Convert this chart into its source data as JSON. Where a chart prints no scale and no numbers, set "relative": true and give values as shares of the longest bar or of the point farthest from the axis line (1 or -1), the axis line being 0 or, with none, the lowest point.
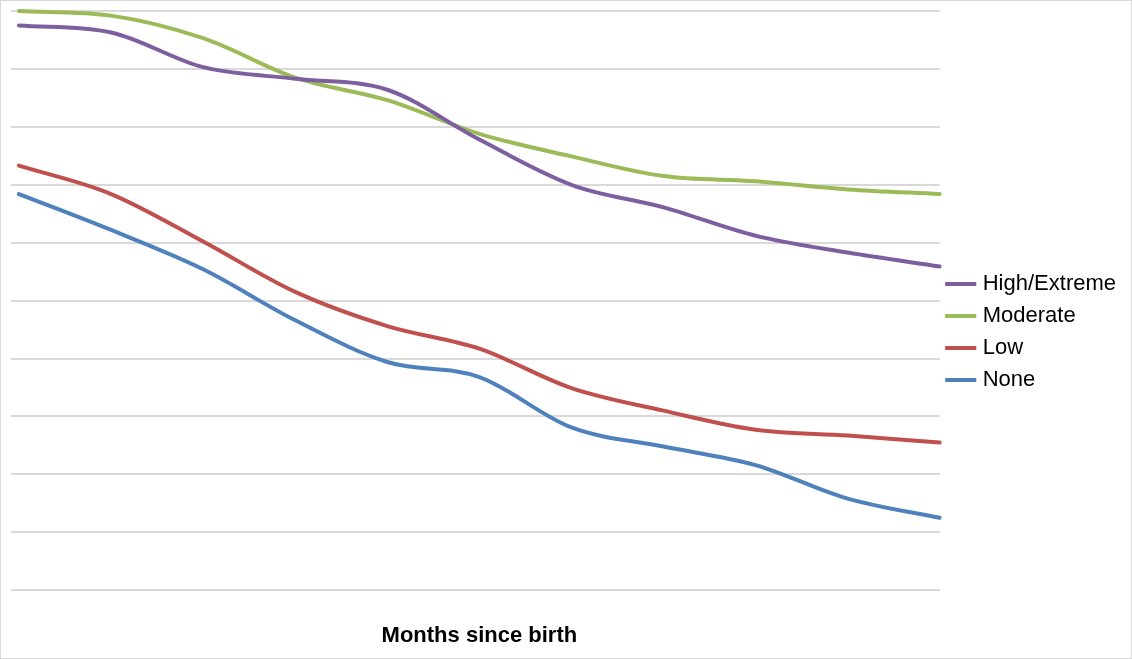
{
  "chart_data": {
    "type": "line",
    "xlabel": "Months since birth",
    "relative": true,
    "grid": "y",
    "legend": "right",
    "marker": "none",
    "line_style": "solid",
    "categories": [
      null,
      null,
      null,
      null,
      null,
      null,
      null,
      null,
      null,
      null,
      null
    ],
    "series": [
      {
        "name": "High/Extreme",
        "color": "#7d5fa0",
        "values": [
          0.975,
          0.963,
          0.903,
          0.883,
          0.864,
          0.778,
          0.7,
          0.661,
          0.612,
          0.583,
          0.559
        ]
      },
      {
        "name": "Moderate",
        "color": "#9bbb59",
        "values": [
          1,
          0.992,
          0.953,
          0.885,
          0.846,
          0.788,
          0.749,
          0.715,
          0.706,
          0.692,
          0.684
        ]
      },
      {
        "name": "Low",
        "color": "#c0504d",
        "values": [
          0.733,
          0.684,
          0.602,
          0.515,
          0.456,
          0.417,
          0.349,
          0.31,
          0.277,
          0.267,
          0.255
        ]
      },
      {
        "name": "None",
        "color": "#4f81bd",
        "values": [
          0.684,
          0.622,
          0.554,
          0.466,
          0.394,
          0.368,
          0.281,
          0.248,
          0.216,
          0.158,
          0.125
        ]
      }
    ]
  }
}
